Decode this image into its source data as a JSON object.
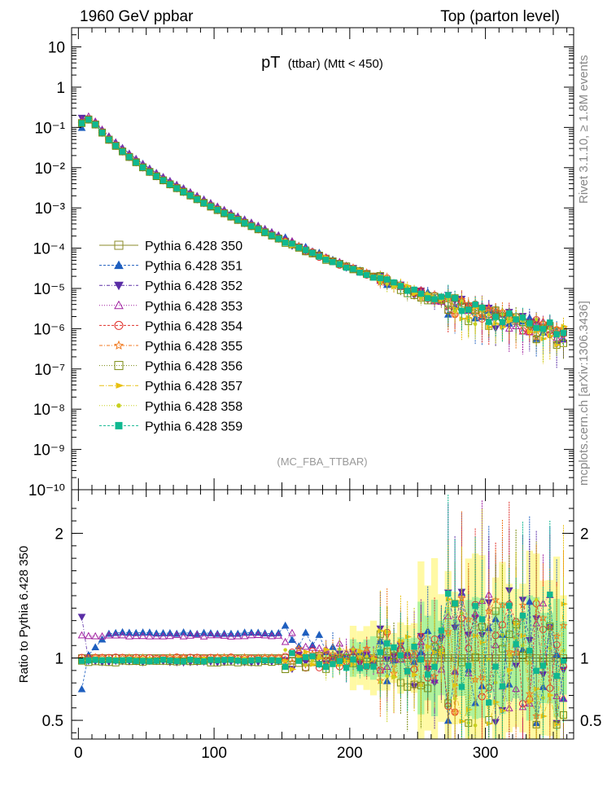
{
  "header": {
    "left": "1960 GeV ppbar",
    "right": "Top (parton level)"
  },
  "side_labels": {
    "rivet": "Rivet 3.1.10, ≥ 1.8M events",
    "mcplots": "mcplots.cern.ch [arXiv:1306.3436]"
  },
  "chart_data": [
    {
      "type": "scatter",
      "title": "pT (ttbar) (Mtt < 450)",
      "title_main": "pT",
      "title_sub": "(ttbar) (Mtt < 450)",
      "watermark": "(MC_FBA_TTBAR)",
      "ylog": true,
      "ylim": [
        1e-10,
        30
      ],
      "xlim": [
        -5,
        365
      ],
      "y_ticks": [
        "10⁻¹⁰",
        "10⁻⁹",
        "10⁻⁸",
        "10⁻⁷",
        "10⁻⁶",
        "10⁻⁵",
        "10⁻⁴",
        "10⁻³",
        "10⁻²",
        "10⁻¹",
        "1",
        "10"
      ],
      "legend_position": "left-center",
      "series": [
        {
          "name": "Pythia 6.428 350",
          "color": "#8b8b2a",
          "marker": "open-square",
          "dash": "0"
        },
        {
          "name": "Pythia 6.428 351",
          "color": "#1f5fbf",
          "marker": "filled-triangle-up",
          "dash": "3,2"
        },
        {
          "name": "Pythia 6.428 352",
          "color": "#5a2ea6",
          "marker": "filled-triangle-down",
          "dash": "4,2,1,2"
        },
        {
          "name": "Pythia 6.428 353",
          "color": "#a020a0",
          "marker": "open-triangle-up",
          "dash": "1,2"
        },
        {
          "name": "Pythia 6.428 354",
          "color": "#e0302a",
          "marker": "open-circle",
          "dash": "3,2"
        },
        {
          "name": "Pythia 6.428 355",
          "color": "#f07a20",
          "marker": "open-star",
          "dash": "4,2,1,2"
        },
        {
          "name": "Pythia 6.428 356",
          "color": "#7a8a10",
          "marker": "open-square",
          "dash": "1,2"
        },
        {
          "name": "Pythia 6.428 357",
          "color": "#e8c010",
          "marker": "filled-triangle-right",
          "dash": "6,2,1,2"
        },
        {
          "name": "Pythia 6.428 358",
          "color": "#c8d020",
          "marker": "filled-circle-small",
          "dash": "1,2"
        },
        {
          "name": "Pythia 6.428 359",
          "color": "#10b890",
          "marker": "filled-square",
          "dash": "3,2"
        }
      ],
      "reference_curve": {
        "x": [
          2.5,
          7.5,
          12.5,
          20,
          30,
          40,
          50,
          60,
          70,
          80,
          90,
          100,
          110,
          120,
          130,
          140,
          150,
          160,
          170,
          180,
          190,
          200,
          210,
          220,
          230,
          240,
          250,
          260,
          270,
          280,
          290,
          300,
          310,
          320,
          330,
          340,
          350,
          355
        ],
        "y": [
          0.13,
          0.16,
          0.12,
          0.06,
          0.03,
          0.016,
          0.009,
          0.0055,
          0.0035,
          0.0023,
          0.0015,
          0.001,
          0.00068,
          0.00047,
          0.00033,
          0.00023,
          0.00016,
          0.000115,
          8.2e-05,
          6e-05,
          4.4e-05,
          3.3e-05,
          2.5e-05,
          1.85e-05,
          1.4e-05,
          1.05e-05,
          8e-06,
          6.2e-06,
          4.8e-06,
          3.8e-06,
          3e-06,
          2.4e-06,
          2e-06,
          1.6e-06,
          1.35e-06,
          1.1e-06,
          9e-07,
          8e-07
        ]
      }
    },
    {
      "type": "scatter",
      "ylabel": "Ratio to Pythia 6.428 350",
      "ylim": [
        0.35,
        2.35
      ],
      "xlim": [
        -5,
        365
      ],
      "y_ticks": [
        "0.5",
        "1",
        "2"
      ],
      "x_ticks": [
        "0",
        "100",
        "200",
        "300"
      ],
      "series_offsets": [
        {
          "name": "Pythia 6.428 350",
          "offset": 1.0
        },
        {
          "name": "Pythia 6.428 351",
          "offset": 1.2
        },
        {
          "name": "Pythia 6.428 352",
          "offset": 0.97
        },
        {
          "name": "Pythia 6.428 353",
          "offset": 1.18
        },
        {
          "name": "Pythia 6.428 354",
          "offset": 1.0
        },
        {
          "name": "Pythia 6.428 355",
          "offset": 1.0
        },
        {
          "name": "Pythia 6.428 356",
          "offset": 0.97
        },
        {
          "name": "Pythia 6.428 357",
          "offset": 0.98
        },
        {
          "name": "Pythia 6.428 358",
          "offset": 0.99
        },
        {
          "name": "Pythia 6.428 359",
          "offset": 0.98
        }
      ]
    }
  ]
}
